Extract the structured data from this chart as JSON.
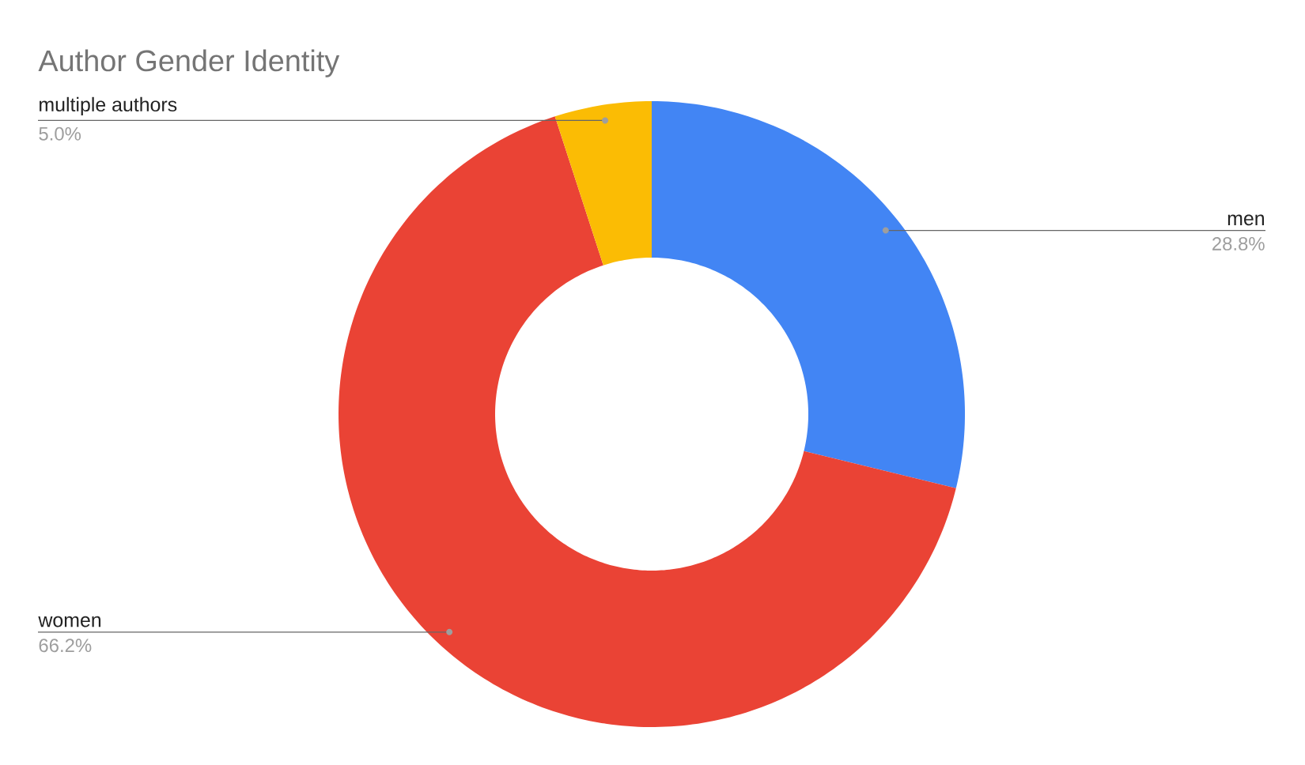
{
  "chart_data": {
    "type": "donut",
    "title": "Author Gender Identity",
    "categories": [
      "men",
      "women",
      "multiple authors"
    ],
    "values": [
      28.8,
      66.2,
      5.0
    ],
    "colors": [
      "#4285f4",
      "#ea4335",
      "#fbbc04"
    ],
    "value_labels": [
      "28.8%",
      "66.2%",
      "5.0%"
    ]
  }
}
